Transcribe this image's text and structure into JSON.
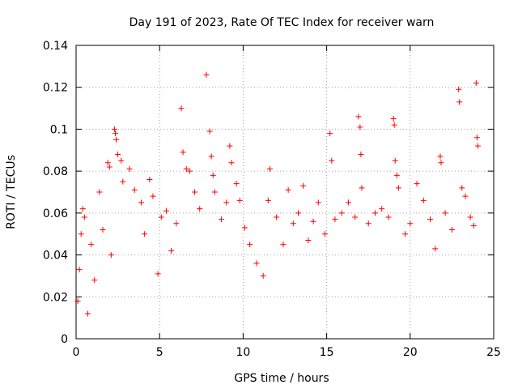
{
  "chart_data": {
    "type": "scatter",
    "title": "Day 191 of 2023, Rate Of TEC Index for receiver warn",
    "xlabel": "GPS time / hours",
    "ylabel": "ROTI / TECUs",
    "xlim": [
      0,
      25
    ],
    "ylim": [
      0,
      0.14
    ],
    "xticks": [
      "0",
      "5",
      "10",
      "15",
      "20",
      "25"
    ],
    "xtick_values": [
      0,
      5,
      10,
      15,
      20,
      25
    ],
    "yticks": [
      "0",
      "0.02",
      "0.04",
      "0.06",
      "0.08",
      "0.1",
      "0.12",
      "0.14"
    ],
    "ytick_values": [
      0,
      0.02,
      0.04,
      0.06,
      0.08,
      0.1,
      0.12,
      0.14
    ],
    "grid": true,
    "marker": "plus",
    "color": "#ff0000",
    "series": [
      {
        "points": [
          [
            0.1,
            0.018
          ],
          [
            0.2,
            0.033
          ],
          [
            0.3,
            0.05
          ],
          [
            0.4,
            0.062
          ],
          [
            0.5,
            0.058
          ],
          [
            0.7,
            0.012
          ],
          [
            0.9,
            0.045
          ],
          [
            1.1,
            0.028
          ],
          [
            1.4,
            0.07
          ],
          [
            1.6,
            0.052
          ],
          [
            1.9,
            0.084
          ],
          [
            2.0,
            0.082
          ],
          [
            2.1,
            0.04
          ],
          [
            2.3,
            0.1
          ],
          [
            2.35,
            0.098
          ],
          [
            2.4,
            0.095
          ],
          [
            2.5,
            0.088
          ],
          [
            2.7,
            0.085
          ],
          [
            2.8,
            0.075
          ],
          [
            3.2,
            0.081
          ],
          [
            3.5,
            0.071
          ],
          [
            3.9,
            0.065
          ],
          [
            4.1,
            0.05
          ],
          [
            4.4,
            0.076
          ],
          [
            4.6,
            0.068
          ],
          [
            4.9,
            0.031
          ],
          [
            5.1,
            0.058
          ],
          [
            5.4,
            0.061
          ],
          [
            5.7,
            0.042
          ],
          [
            6.0,
            0.055
          ],
          [
            6.3,
            0.11
          ],
          [
            6.4,
            0.089
          ],
          [
            6.6,
            0.081
          ],
          [
            6.8,
            0.08
          ],
          [
            7.1,
            0.07
          ],
          [
            7.4,
            0.062
          ],
          [
            7.8,
            0.126
          ],
          [
            8.0,
            0.099
          ],
          [
            8.1,
            0.087
          ],
          [
            8.2,
            0.078
          ],
          [
            8.3,
            0.07
          ],
          [
            8.7,
            0.057
          ],
          [
            9.0,
            0.065
          ],
          [
            9.2,
            0.092
          ],
          [
            9.3,
            0.084
          ],
          [
            9.6,
            0.074
          ],
          [
            9.8,
            0.066
          ],
          [
            10.1,
            0.053
          ],
          [
            10.4,
            0.045
          ],
          [
            10.8,
            0.036
          ],
          [
            11.2,
            0.03
          ],
          [
            11.5,
            0.066
          ],
          [
            11.6,
            0.081
          ],
          [
            12.0,
            0.058
          ],
          [
            12.4,
            0.045
          ],
          [
            12.7,
            0.071
          ],
          [
            13.0,
            0.055
          ],
          [
            13.3,
            0.06
          ],
          [
            13.6,
            0.073
          ],
          [
            13.9,
            0.047
          ],
          [
            14.2,
            0.056
          ],
          [
            14.5,
            0.065
          ],
          [
            14.9,
            0.05
          ],
          [
            15.2,
            0.098
          ],
          [
            15.3,
            0.085
          ],
          [
            15.5,
            0.057
          ],
          [
            15.9,
            0.06
          ],
          [
            16.3,
            0.065
          ],
          [
            16.7,
            0.058
          ],
          [
            16.9,
            0.106
          ],
          [
            17.0,
            0.101
          ],
          [
            17.05,
            0.088
          ],
          [
            17.1,
            0.072
          ],
          [
            17.5,
            0.055
          ],
          [
            17.9,
            0.06
          ],
          [
            18.3,
            0.062
          ],
          [
            18.7,
            0.058
          ],
          [
            19.0,
            0.105
          ],
          [
            19.05,
            0.102
          ],
          [
            19.1,
            0.085
          ],
          [
            19.2,
            0.078
          ],
          [
            19.3,
            0.072
          ],
          [
            19.7,
            0.05
          ],
          [
            20.0,
            0.055
          ],
          [
            20.4,
            0.074
          ],
          [
            20.8,
            0.066
          ],
          [
            21.2,
            0.057
          ],
          [
            21.5,
            0.043
          ],
          [
            21.8,
            0.087
          ],
          [
            21.85,
            0.084
          ],
          [
            22.1,
            0.06
          ],
          [
            22.5,
            0.052
          ],
          [
            22.9,
            0.119
          ],
          [
            22.95,
            0.113
          ],
          [
            23.1,
            0.072
          ],
          [
            23.3,
            0.068
          ],
          [
            23.6,
            0.058
          ],
          [
            23.8,
            0.054
          ],
          [
            23.95,
            0.122
          ],
          [
            24.0,
            0.096
          ],
          [
            24.05,
            0.092
          ]
        ]
      }
    ]
  }
}
